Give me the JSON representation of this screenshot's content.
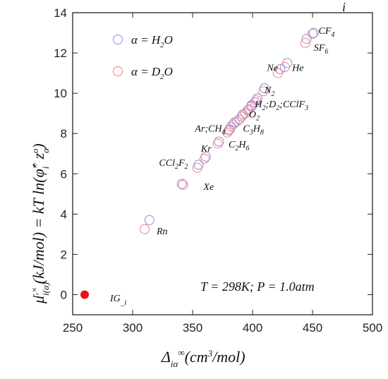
{
  "chart_data": {
    "type": "scatter",
    "xlim": [
      250,
      500
    ],
    "ylim": [
      -1,
      14
    ],
    "x_ticks": [
      "250",
      "300",
      "350",
      "400",
      "450",
      "500"
    ],
    "y_ticks": [
      "0",
      "2",
      "4",
      "6",
      "8",
      "10",
      "12",
      "14"
    ],
    "xlabel": "Δ_iα^∞ (cm³/mol)",
    "ylabel": "μ_i(α)^r,× (kJ/mol) = kT ln(φ̂_i^× z_α^o)",
    "condition_text": "T = 298K; P = 1.0atm",
    "corner_label": "i",
    "ig_label": "IG_i",
    "ig_point": {
      "x": 260,
      "y": 0
    },
    "legend_position": "top-left",
    "series": [
      {
        "name": "α = H2O",
        "color": "#8a8aee",
        "points": [
          {
            "label": "CF4",
            "x": 451,
            "y": 13.0
          },
          {
            "label": "SF6",
            "x": 445,
            "y": 12.7
          },
          {
            "label": "He",
            "x": 429,
            "y": 11.5
          },
          {
            "label": "Ne",
            "x": 423,
            "y": 11.2
          },
          {
            "label": "N2",
            "x": 410,
            "y": 10.25
          },
          {
            "label": "H2",
            "x": 404,
            "y": 9.75
          },
          {
            "label": "D2",
            "x": 402,
            "y": 9.55
          },
          {
            "label": "CClF3",
            "x": 399,
            "y": 9.4
          },
          {
            "label": "O2",
            "x": 396,
            "y": 9.15
          },
          {
            "label": "C3H8",
            "x": 392,
            "y": 8.95
          },
          {
            "label": "C3H8b",
            "x": 389,
            "y": 8.7
          },
          {
            "label": "C2H6",
            "x": 385,
            "y": 8.55
          },
          {
            "label": "CH4",
            "x": 382,
            "y": 8.35
          },
          {
            "label": "Ar",
            "x": 381,
            "y": 8.2
          },
          {
            "label": "Ar2",
            "x": 372,
            "y": 7.6
          },
          {
            "label": "Kr",
            "x": 361,
            "y": 6.85
          },
          {
            "label": "CCl2F2",
            "x": 355,
            "y": 6.45
          },
          {
            "label": "Xe",
            "x": 341,
            "y": 5.5
          },
          {
            "label": "Rn",
            "x": 314,
            "y": 3.7
          }
        ]
      },
      {
        "name": "α = D2O",
        "color": "#f08080",
        "points": [
          {
            "label": "CF4",
            "x": 450,
            "y": 12.95
          },
          {
            "label": "SF6",
            "x": 444,
            "y": 12.5
          },
          {
            "label": "He",
            "x": 427,
            "y": 11.3
          },
          {
            "label": "Ne",
            "x": 421,
            "y": 11.0
          },
          {
            "label": "N2",
            "x": 409,
            "y": 10.1
          },
          {
            "label": "H2",
            "x": 403,
            "y": 9.65
          },
          {
            "label": "D2",
            "x": 399,
            "y": 9.35
          },
          {
            "label": "CClF3",
            "x": 397,
            "y": 9.2
          },
          {
            "label": "O2",
            "x": 394,
            "y": 9.0
          },
          {
            "label": "C3H8",
            "x": 391,
            "y": 8.85
          },
          {
            "label": "C3H8b",
            "x": 387,
            "y": 8.6
          },
          {
            "label": "C2H6",
            "x": 384,
            "y": 8.45
          },
          {
            "label": "CH4",
            "x": 380,
            "y": 8.15
          },
          {
            "label": "Ar",
            "x": 379,
            "y": 8.05
          },
          {
            "label": "Ar2",
            "x": 371,
            "y": 7.5
          },
          {
            "label": "Kr",
            "x": 360,
            "y": 6.75
          },
          {
            "label": "CCl2F2",
            "x": 354,
            "y": 6.3
          },
          {
            "label": "Xe",
            "x": 342,
            "y": 5.45
          },
          {
            "label": "Rn",
            "x": 310,
            "y": 3.25
          }
        ]
      }
    ],
    "annotations": [
      {
        "name": "ar-ch4",
        "base": [
          "Ar;CH",
          "4"
        ],
        "x": 352,
        "y": 8.1
      },
      {
        "name": "kr",
        "base": [
          "Kr",
          ""
        ],
        "x": 357,
        "y": 7.1
      },
      {
        "name": "ccl2f2",
        "base": [
          "CCl",
          "2",
          "F",
          "2"
        ],
        "x": 322,
        "y": 6.4
      },
      {
        "name": "xe",
        "base": [
          "Xe",
          ""
        ],
        "x": 359,
        "y": 5.2
      },
      {
        "name": "rn",
        "base": [
          "Rn",
          ""
        ],
        "x": 320,
        "y": 3.0
      },
      {
        "name": "c2h6",
        "base": [
          "C",
          "2",
          "H",
          "6"
        ],
        "x": 380,
        "y": 7.3
      },
      {
        "name": "c3h8",
        "base": [
          "C",
          "3",
          "H",
          "8"
        ],
        "x": 392,
        "y": 8.1
      },
      {
        "name": "o2",
        "base": [
          "O",
          "2"
        ],
        "x": 397,
        "y": 8.8
      },
      {
        "name": "h2-d2-cclf3",
        "base": [
          "H",
          "2",
          ";D",
          "2",
          ";CClF",
          "3"
        ],
        "x": 402,
        "y": 9.3
      },
      {
        "name": "n2",
        "base": [
          "N",
          "2"
        ],
        "x": 410,
        "y": 10.0
      },
      {
        "name": "ne",
        "base": [
          "Ne",
          ""
        ],
        "x": 412,
        "y": 11.1
      },
      {
        "name": "he",
        "base": [
          "He",
          ""
        ],
        "x": 433,
        "y": 11.1
      },
      {
        "name": "sf6",
        "base": [
          "SF",
          "6"
        ],
        "x": 451,
        "y": 12.1
      },
      {
        "name": "cf4",
        "base": [
          "CF",
          "4"
        ],
        "x": 455,
        "y": 12.95
      }
    ]
  }
}
